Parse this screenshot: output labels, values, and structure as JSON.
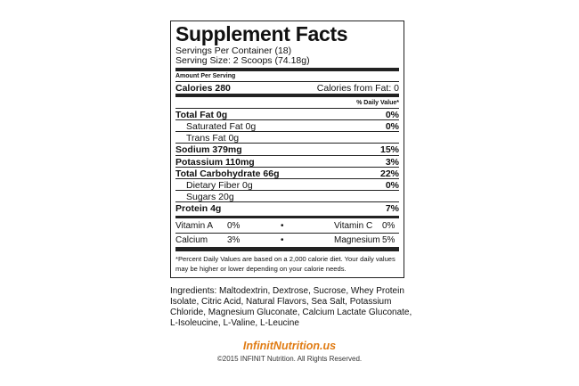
{
  "title": "Supplement Facts",
  "servings_per_container": "Servings Per Container (18)",
  "serving_size": "Serving Size: 2 Scoops (74.18g)",
  "amount_per_serving": "Amount Per Serving",
  "calories": "Calories 280",
  "calories_from_fat": "Calories from Fat: 0",
  "daily_value_header": "% Daily Value*",
  "nutrients": [
    {
      "label": "Total Fat 0g",
      "dv": "0%"
    },
    {
      "label": "Saturated Fat 0g",
      "dv": "0%"
    },
    {
      "label": "Trans Fat 0g",
      "dv": ""
    },
    {
      "label": "Sodium 379mg",
      "dv": "15%"
    },
    {
      "label": "Potassium 110mg",
      "dv": "3%"
    },
    {
      "label": "Total Carbohydrate 66g",
      "dv": "22%"
    },
    {
      "label": "Dietary Fiber 0g",
      "dv": "0%"
    },
    {
      "label": "Sugars 20g",
      "dv": ""
    },
    {
      "label": "Protein 4g",
      "dv": "7%"
    }
  ],
  "vitamins": [
    {
      "n1": "Vitamin A",
      "v1": "0%",
      "sep": "•",
      "n2": "Vitamin C",
      "v2": "0%"
    },
    {
      "n1": "Calcium",
      "v1": "3%",
      "sep": "•",
      "n2": "Magnesium",
      "v2": "5%"
    }
  ],
  "footnote": "*Percent Daily Values are based on a 2,000 calorie diet. Your daily values may be higher or lower depending on your calorie needs.",
  "ingredients": "Ingredients: Maltodextrin, Dextrose, Sucrose, Whey Protein Isolate, Citric Acid, Natural Flavors, Sea Salt, Potassium Chloride, Magnesium Gluconate, Calcium Lactate Gluconate, L-Isoleucine, L-Valine, L-Leucine",
  "website": "InfinitNutrition.us",
  "copyright": "©2015 INFINIT Nutrition. All Rights Reserved.",
  "colors": {
    "website": "#e07b12",
    "text": "#111111"
  }
}
